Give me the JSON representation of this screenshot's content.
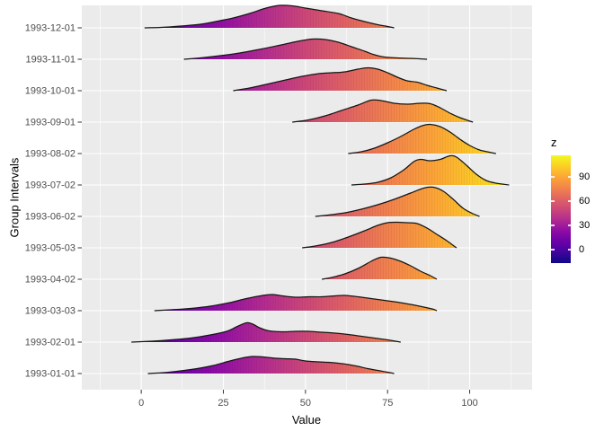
{
  "axes": {
    "x": {
      "label": "Value"
    },
    "y": {
      "label": "Group Intervals"
    }
  },
  "legend": {
    "title": "z",
    "ticks": [
      90,
      60,
      30,
      0
    ],
    "limits": [
      -16.7,
      116.7
    ]
  },
  "colors": {
    "panel_bg": "#EBEBEB",
    "gridline": "#FFFFFF",
    "axis_text": "#4D4D4D",
    "tick_mark": "#333333",
    "title_text": "#000000",
    "ridge_stroke": "#161616",
    "plasma_palette": [
      "#0D0887",
      "#41049D",
      "#6A00A8",
      "#8F0DA4",
      "#B12A90",
      "#CC4778",
      "#E16462",
      "#F2844B",
      "#FCA636",
      "#FCCE25",
      "#F0F921"
    ]
  },
  "chart_data": {
    "type": "area",
    "variant": "ridgeline-gradient",
    "title": "",
    "xlabel": "Value",
    "ylabel": "Group Intervals",
    "x_major_ticks": [
      0,
      25,
      50,
      75,
      100
    ],
    "x_minor_ticks": [
      -12.5,
      12.5,
      37.5,
      62.5,
      87.5,
      112.5
    ],
    "x_range": [
      -18.1,
      119.0
    ],
    "grid": "major white on grey panel",
    "legend_position": "right",
    "fill_mapping": "x value mapped to plasma gradient, legend variable z, limits -16.7 to 116.7",
    "categories_top_to_bottom": [
      "1993-12-01",
      "1993-11-01",
      "1993-10-01",
      "1993-09-01",
      "1993-08-02",
      "1993-07-02",
      "1993-06-02",
      "1993-05-03",
      "1993-04-02",
      "1993-03-03",
      "1993-02-01",
      "1993-01-01"
    ],
    "height_units": "density height in screen px above each baseline (row spacing = 35px)",
    "series": [
      {
        "name": "1993-12-01",
        "points": [
          [
            1,
            0
          ],
          [
            6,
            0.5
          ],
          [
            12,
            2
          ],
          [
            18,
            4
          ],
          [
            24,
            8
          ],
          [
            28,
            11
          ],
          [
            33,
            16
          ],
          [
            38,
            22
          ],
          [
            42,
            25
          ],
          [
            46,
            24.5
          ],
          [
            50,
            22
          ],
          [
            55,
            19
          ],
          [
            60,
            16
          ],
          [
            64,
            11
          ],
          [
            68,
            7
          ],
          [
            72,
            3.5
          ],
          [
            75,
            1.5
          ],
          [
            77,
            0
          ]
        ]
      },
      {
        "name": "1993-11-01",
        "points": [
          [
            13,
            0
          ],
          [
            18,
            1.5
          ],
          [
            24,
            4
          ],
          [
            30,
            7
          ],
          [
            36,
            11
          ],
          [
            42,
            15.5
          ],
          [
            47,
            19.5
          ],
          [
            52,
            22.5
          ],
          [
            56,
            22
          ],
          [
            60,
            19
          ],
          [
            64,
            14
          ],
          [
            68,
            9
          ],
          [
            71,
            5
          ],
          [
            74,
            2.5
          ],
          [
            78,
            1.5
          ],
          [
            82,
            1
          ],
          [
            87,
            0
          ]
        ]
      },
      {
        "name": "1993-10-01",
        "points": [
          [
            28,
            0
          ],
          [
            33,
            3
          ],
          [
            38,
            7
          ],
          [
            44,
            12
          ],
          [
            49,
            16
          ],
          [
            54,
            19
          ],
          [
            58,
            20
          ],
          [
            62,
            21
          ],
          [
            66,
            24
          ],
          [
            69,
            25.5
          ],
          [
            72,
            24
          ],
          [
            75,
            20
          ],
          [
            78,
            15
          ],
          [
            81,
            11
          ],
          [
            84,
            9.5
          ],
          [
            87,
            6
          ],
          [
            90,
            3
          ],
          [
            93,
            0
          ]
        ]
      },
      {
        "name": "1993-09-01",
        "points": [
          [
            46,
            0
          ],
          [
            51,
            2.5
          ],
          [
            56,
            7
          ],
          [
            61,
            13
          ],
          [
            66,
            19
          ],
          [
            70,
            24.5
          ],
          [
            73,
            24
          ],
          [
            77,
            21
          ],
          [
            81,
            20
          ],
          [
            85,
            21
          ],
          [
            88,
            20.5
          ],
          [
            91,
            16
          ],
          [
            94,
            10
          ],
          [
            97,
            5
          ],
          [
            101,
            0
          ]
        ]
      },
      {
        "name": "1993-08-02",
        "points": [
          [
            63,
            0
          ],
          [
            67,
            2
          ],
          [
            71,
            6
          ],
          [
            75,
            12
          ],
          [
            79,
            19
          ],
          [
            83,
            27
          ],
          [
            86,
            31.5
          ],
          [
            88,
            32.5
          ],
          [
            91,
            30
          ],
          [
            94,
            24
          ],
          [
            97,
            16
          ],
          [
            100,
            9
          ],
          [
            103,
            4
          ],
          [
            106,
            1.5
          ],
          [
            108,
            0
          ]
        ]
      },
      {
        "name": "1993-07-02",
        "points": [
          [
            64,
            0
          ],
          [
            68,
            1
          ],
          [
            72,
            3
          ],
          [
            76,
            8
          ],
          [
            80,
            17
          ],
          [
            83,
            26
          ],
          [
            85,
            28.5
          ],
          [
            88,
            27
          ],
          [
            91,
            28.5
          ],
          [
            94,
            32.5
          ],
          [
            96,
            31
          ],
          [
            99,
            22
          ],
          [
            102,
            12
          ],
          [
            105,
            5
          ],
          [
            108,
            2
          ],
          [
            112,
            0
          ]
        ]
      },
      {
        "name": "1993-06-02",
        "points": [
          [
            53,
            0
          ],
          [
            57,
            1.5
          ],
          [
            62,
            4
          ],
          [
            67,
            8
          ],
          [
            72,
            13
          ],
          [
            77,
            19
          ],
          [
            82,
            26
          ],
          [
            86,
            31.5
          ],
          [
            89,
            32.5
          ],
          [
            92,
            28
          ],
          [
            95,
            19
          ],
          [
            98,
            9
          ],
          [
            101,
            3
          ],
          [
            103,
            0
          ]
        ]
      },
      {
        "name": "1993-05-03",
        "points": [
          [
            49,
            0
          ],
          [
            53,
            2
          ],
          [
            58,
            6
          ],
          [
            63,
            12
          ],
          [
            68,
            19
          ],
          [
            72,
            25
          ],
          [
            75,
            28
          ],
          [
            78,
            28.5
          ],
          [
            81,
            28
          ],
          [
            84,
            27
          ],
          [
            87,
            22
          ],
          [
            90,
            15
          ],
          [
            93,
            8
          ],
          [
            96,
            0
          ]
        ]
      },
      {
        "name": "1993-04-02",
        "points": [
          [
            55,
            0
          ],
          [
            58,
            2
          ],
          [
            62,
            6
          ],
          [
            66,
            12
          ],
          [
            70,
            20
          ],
          [
            73,
            24.5
          ],
          [
            76,
            23.5
          ],
          [
            79,
            20
          ],
          [
            82,
            15
          ],
          [
            85,
            9
          ],
          [
            88,
            4
          ],
          [
            90,
            0
          ]
        ]
      },
      {
        "name": "1993-03-03",
        "points": [
          [
            4,
            0
          ],
          [
            9,
            1
          ],
          [
            15,
            2.5
          ],
          [
            21,
            5
          ],
          [
            27,
            9
          ],
          [
            32,
            13.5
          ],
          [
            37,
            17
          ],
          [
            40,
            18
          ],
          [
            43,
            16.5
          ],
          [
            47,
            15
          ],
          [
            51,
            15.5
          ],
          [
            55,
            15.5
          ],
          [
            59,
            16.5
          ],
          [
            62,
            17
          ],
          [
            66,
            15.5
          ],
          [
            70,
            13.5
          ],
          [
            74,
            11.5
          ],
          [
            78,
            9.5
          ],
          [
            82,
            7
          ],
          [
            86,
            4
          ],
          [
            89,
            1.5
          ],
          [
            90,
            0
          ]
        ]
      },
      {
        "name": "1993-02-01",
        "points": [
          [
            -3,
            0
          ],
          [
            3,
            1
          ],
          [
            9,
            2.5
          ],
          [
            15,
            4.5
          ],
          [
            21,
            8
          ],
          [
            26,
            12
          ],
          [
            29,
            17
          ],
          [
            32,
            21.5
          ],
          [
            34,
            20
          ],
          [
            36,
            16
          ],
          [
            39,
            12.5
          ],
          [
            43,
            11.5
          ],
          [
            47,
            12
          ],
          [
            51,
            12
          ],
          [
            55,
            11
          ],
          [
            59,
            10
          ],
          [
            63,
            8.5
          ],
          [
            67,
            6.5
          ],
          [
            71,
            4.5
          ],
          [
            75,
            2.5
          ],
          [
            79,
            0
          ]
        ]
      },
      {
        "name": "1993-01-01",
        "points": [
          [
            2,
            0
          ],
          [
            7,
            1
          ],
          [
            12,
            3
          ],
          [
            17,
            5.5
          ],
          [
            22,
            9
          ],
          [
            27,
            14
          ],
          [
            31,
            17.5
          ],
          [
            34,
            19
          ],
          [
            37,
            18.5
          ],
          [
            41,
            17
          ],
          [
            44,
            16.5
          ],
          [
            47,
            16
          ],
          [
            50,
            14
          ],
          [
            54,
            13
          ],
          [
            57,
            12.5
          ],
          [
            60,
            11.5
          ],
          [
            63,
            10
          ],
          [
            66,
            8
          ],
          [
            69,
            5.5
          ],
          [
            72,
            3.5
          ],
          [
            75,
            1.5
          ],
          [
            77,
            0
          ]
        ]
      }
    ]
  }
}
